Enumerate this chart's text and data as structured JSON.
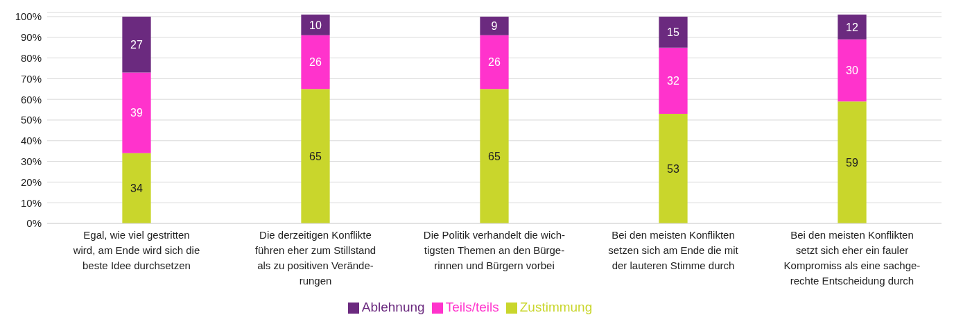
{
  "chart_data": {
    "type": "bar",
    "stacked": true,
    "categories": [
      "Egal, wie viel gestritten\nwird, am Ende wird sich die\nbeste Idee durchsetzen",
      "Die derzeitigen Konflikte\nführen eher zum Stillstand\nals zu positiven Verände-\nrungen",
      "Die Politik verhandelt die wich-\ntigsten Themen an den Bürge-\nrinnen und Bürgern vorbei",
      "Bei den meisten Konflikten\nsetzen sich am Ende die mit\nder lauteren Stimme durch",
      "Bei den meisten Konflikten\nsetzt sich eher ein fauler\nKompromiss als eine sachge-\nrechte Entscheidung durch"
    ],
    "series": [
      {
        "name": "Zustimmung",
        "color": "#c9d62c",
        "values": [
          34,
          65,
          65,
          53,
          59
        ]
      },
      {
        "name": "Teils/teils",
        "color": "#ff33cc",
        "values": [
          39,
          26,
          26,
          32,
          30
        ]
      },
      {
        "name": "Ablehnung",
        "color": "#6b2a7f",
        "values": [
          27,
          10,
          9,
          15,
          12
        ]
      }
    ],
    "ylim": [
      0,
      102
    ],
    "yticks": [
      {
        "value": 0,
        "label": "0%"
      },
      {
        "value": 10,
        "label": "10%"
      },
      {
        "value": 20,
        "label": "20%"
      },
      {
        "value": 30,
        "label": "30%"
      },
      {
        "value": 40,
        "label": "40%"
      },
      {
        "value": 50,
        "label": "50%"
      },
      {
        "value": 60,
        "label": "60%"
      },
      {
        "value": 70,
        "label": "70%"
      },
      {
        "value": 80,
        "label": "80%"
      },
      {
        "value": 90,
        "label": "90%"
      },
      {
        "value": 100,
        "label": "100%"
      }
    ],
    "grid": "y",
    "legend": "bottom",
    "data_labels": true
  }
}
